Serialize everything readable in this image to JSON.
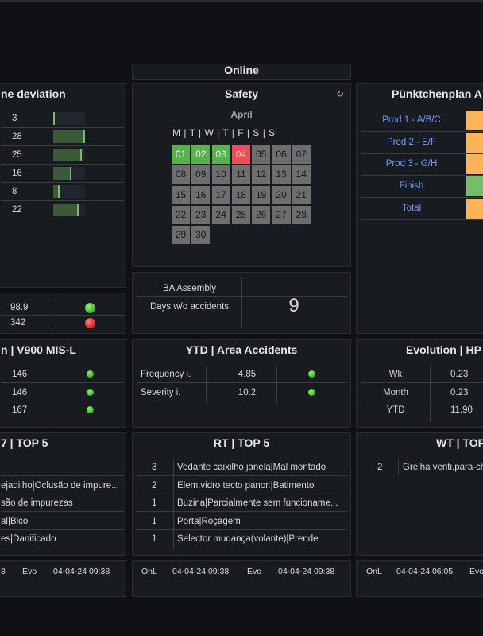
{
  "colors": {
    "ok": "#56b34a",
    "bad": "#f2495c",
    "neutral": "#6e6e6e",
    "orange": "#ffb357",
    "green": "#73bf69",
    "link": "#6e9fff"
  },
  "online": {
    "title": "Online"
  },
  "deviation": {
    "title": "ne deviation",
    "rows": [
      {
        "value": "3",
        "level": 0.05
      },
      {
        "value": "28",
        "level": 1.0
      },
      {
        "value": "25",
        "level": 0.89
      },
      {
        "value": "16",
        "level": 0.57
      },
      {
        "value": "8",
        "level": 0.2
      },
      {
        "value": "22",
        "level": 0.79
      }
    ]
  },
  "kpi_small": {
    "rows": [
      {
        "value": "98.9",
        "status": "green"
      },
      {
        "value": "342",
        "status": "red"
      }
    ]
  },
  "safety": {
    "title": "Safety",
    "refresh_icon": "refresh-icon",
    "month": "April",
    "weekdays": "M | T | W | T | F | S | S",
    "days": [
      {
        "d": "01",
        "s": "ok"
      },
      {
        "d": "02",
        "s": "ok"
      },
      {
        "d": "03",
        "s": "ok"
      },
      {
        "d": "04",
        "s": "bad"
      },
      {
        "d": "05",
        "s": "n"
      },
      {
        "d": "06",
        "s": "n"
      },
      {
        "d": "07",
        "s": "n"
      },
      {
        "d": "08",
        "s": "n"
      },
      {
        "d": "09",
        "s": "n"
      },
      {
        "d": "10",
        "s": "n"
      },
      {
        "d": "11",
        "s": "n"
      },
      {
        "d": "12",
        "s": "n"
      },
      {
        "d": "13",
        "s": "n"
      },
      {
        "d": "14",
        "s": "n"
      },
      {
        "d": "15",
        "s": "n"
      },
      {
        "d": "16",
        "s": "n"
      },
      {
        "d": "17",
        "s": "n"
      },
      {
        "d": "18",
        "s": "n"
      },
      {
        "d": "19",
        "s": "n"
      },
      {
        "d": "20",
        "s": "n"
      },
      {
        "d": "21",
        "s": "n"
      },
      {
        "d": "22",
        "s": "n"
      },
      {
        "d": "23",
        "s": "n"
      },
      {
        "d": "24",
        "s": "n"
      },
      {
        "d": "25",
        "s": "n"
      },
      {
        "d": "26",
        "s": "n"
      },
      {
        "d": "27",
        "s": "n"
      },
      {
        "d": "28",
        "s": "n"
      },
      {
        "d": "29",
        "s": "n"
      },
      {
        "d": "30",
        "s": "n"
      }
    ]
  },
  "accidents": {
    "area": "BA Assembly",
    "label": "Days w/o accidents",
    "value": "9"
  },
  "punktchen": {
    "title": "Pünktchenplan A",
    "rows": [
      {
        "label": "Prod 1 - A/B/C",
        "color": "orange"
      },
      {
        "label": "Prod 2 - E/F",
        "color": "orange"
      },
      {
        "label": "Prod 3 - G/H",
        "color": "orange"
      },
      {
        "label": "Finish",
        "color": "green"
      },
      {
        "label": "Total",
        "color": "orange"
      }
    ]
  },
  "v900": {
    "title": "n | V900 MIS-L",
    "rows": [
      {
        "value": "146"
      },
      {
        "value": "146"
      },
      {
        "value": "167"
      }
    ]
  },
  "ytd": {
    "title": "YTD | Area Accidents",
    "rows": [
      {
        "label": "Frequency i.",
        "value": "4.85"
      },
      {
        "label": "Severity i.",
        "value": "10.2"
      }
    ]
  },
  "evolution": {
    "title": "Evolution | HP",
    "rows": [
      {
        "label": "Wk",
        "value": "0.23"
      },
      {
        "label": "Month",
        "value": "0.23"
      },
      {
        "label": "YTD",
        "value": "11.90"
      }
    ]
  },
  "top_left": {
    "title": "7 | TOP 5",
    "rows": [
      {
        "text": ""
      },
      {
        "text": "ejadilho|Oclusão de impure..."
      },
      {
        "text": "são de impurezas"
      },
      {
        "text": "al|Bico"
      },
      {
        "text": "es|Danificado"
      }
    ]
  },
  "rt": {
    "title": "RT | TOP 5",
    "rows": [
      {
        "count": "3",
        "text": "Vedante caixilho janela|Mal montado"
      },
      {
        "count": "2",
        "text": "Elem.vidro tecto panor.|Batimento"
      },
      {
        "count": "1",
        "text": "Buzina|Parcialmente sem funcioname..."
      },
      {
        "count": "1",
        "text": "Porta|Roçagem"
      },
      {
        "count": "1",
        "text": "Selector mudança(volante)|Prende"
      }
    ]
  },
  "wt": {
    "title": "WT | TOP",
    "rows": [
      {
        "count": "2",
        "text": "Grelha venti.pára-ch"
      }
    ]
  },
  "footers": {
    "left": {
      "a": "8",
      "b": "Evo",
      "c": "04-04-24 09:38"
    },
    "mid": {
      "a": "OnL",
      "b": "04-04-24 09:38",
      "c": "Evo",
      "d": "04-04-24 09:38"
    },
    "right": {
      "a": "OnL",
      "b": "04-04-24 06:05",
      "c": "Evo"
    }
  }
}
